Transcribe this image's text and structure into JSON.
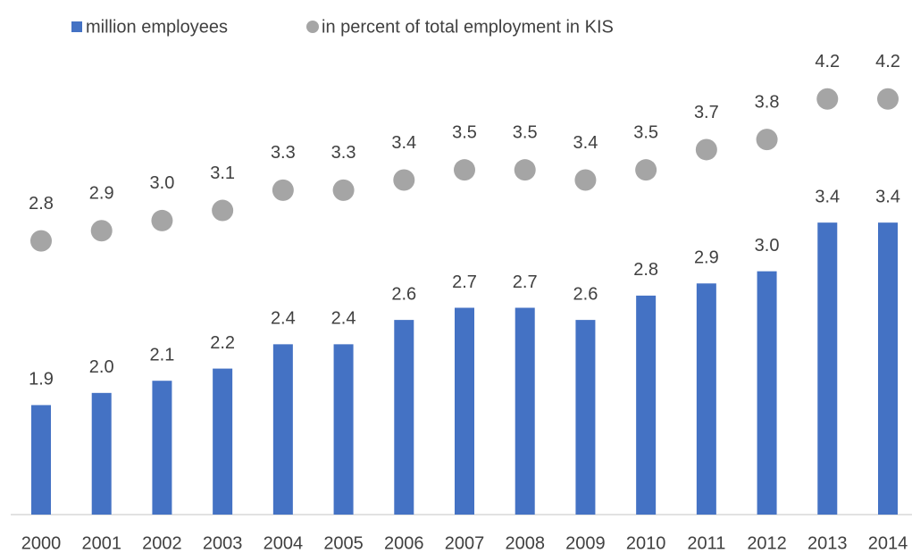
{
  "chart_data": {
    "type": "bar",
    "categories": [
      "2000",
      "2001",
      "2002",
      "2003",
      "2004",
      "2005",
      "2006",
      "2007",
      "2008",
      "2009",
      "2010",
      "2011",
      "2012",
      "2013",
      "2014"
    ],
    "series": [
      {
        "name": "million employees",
        "type": "bar",
        "color": "#4472c4",
        "values": [
          1.9,
          2,
          2.1,
          2.2,
          2.4,
          2.4,
          2.6,
          2.7,
          2.7,
          2.6,
          2.8,
          2.9,
          3,
          3.4,
          3.4
        ],
        "value_labels": [
          "1.9",
          "2.0",
          "2.1",
          "2.2",
          "2.4",
          "2.4",
          "2.6",
          "2.7",
          "2.7",
          "2.6",
          "2.8",
          "2.9",
          "3.0",
          "3.4",
          "3.4"
        ]
      },
      {
        "name": "in percent of total employment in KIS",
        "type": "scatter",
        "axis": "y2",
        "color": "#a5a5a5",
        "values": [
          2.8,
          2.9,
          3,
          3.1,
          3.3,
          3.3,
          3.4,
          3.5,
          3.5,
          3.4,
          3.5,
          3.7,
          3.8,
          4.2,
          4.2
        ],
        "value_labels": [
          "2.8",
          "2.9",
          "3.0",
          "3.1",
          "3.3",
          "3.3",
          "3.4",
          "3.5",
          "3.5",
          "3.4",
          "3.5",
          "3.7",
          "3.8",
          "4.2",
          "4.2"
        ]
      }
    ],
    "ylim": [
      1,
      4.4
    ],
    "y2lim": [
      0.1,
      4.18
    ],
    "legend": "top"
  }
}
